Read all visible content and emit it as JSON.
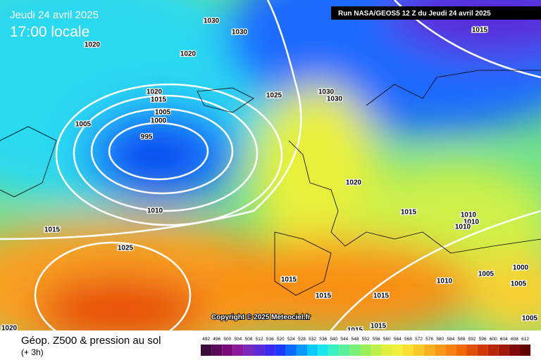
{
  "header": {
    "date": "Jeudi 24 avril 2025",
    "time": "17:00 locale",
    "run": "Run NASA/GEOS5 12 Z du Jeudi 24 avril 2025"
  },
  "footer": {
    "title": "Géop. Z500 & pression au sol",
    "subtitle": "(+ 3h)",
    "copyright": "Copyright © 2025 Meteociel.fr"
  },
  "legend": {
    "labels": [
      492,
      496,
      500,
      504,
      508,
      512,
      516,
      520,
      524,
      528,
      532,
      536,
      540,
      544,
      548,
      552,
      556,
      560,
      564,
      568,
      572,
      576,
      580,
      584,
      588,
      592,
      596,
      600,
      604,
      608,
      612
    ],
    "colors": [
      "#3a0a3a",
      "#5a0a5a",
      "#7a0a7a",
      "#8a1a9a",
      "#7a2ab8",
      "#5a2ad8",
      "#3a2af0",
      "#1a3aff",
      "#0a6aff",
      "#0a9aff",
      "#0acaff",
      "#1ae6f0",
      "#3af0c0",
      "#5af09a",
      "#7af07a",
      "#9af05a",
      "#bff04a",
      "#def03a",
      "#f0f03a",
      "#f8e030",
      "#f8c828",
      "#f8b020",
      "#f89818",
      "#f88010",
      "#f06808",
      "#e05008",
      "#d03808",
      "#b82808",
      "#a01808",
      "#800808",
      "#600000"
    ]
  },
  "pressure_labels": [
    1030,
    1030,
    1020,
    1020,
    1015,
    1020,
    1015,
    1025,
    1030,
    1030,
    1005,
    1000,
    1005,
    995,
    1020,
    1015,
    1010,
    1010,
    1010,
    1010,
    1015,
    1025,
    1000,
    1005,
    1015,
    1010,
    1005,
    1015,
    1015,
    1005,
    1015,
    1015,
    1020
  ]
}
